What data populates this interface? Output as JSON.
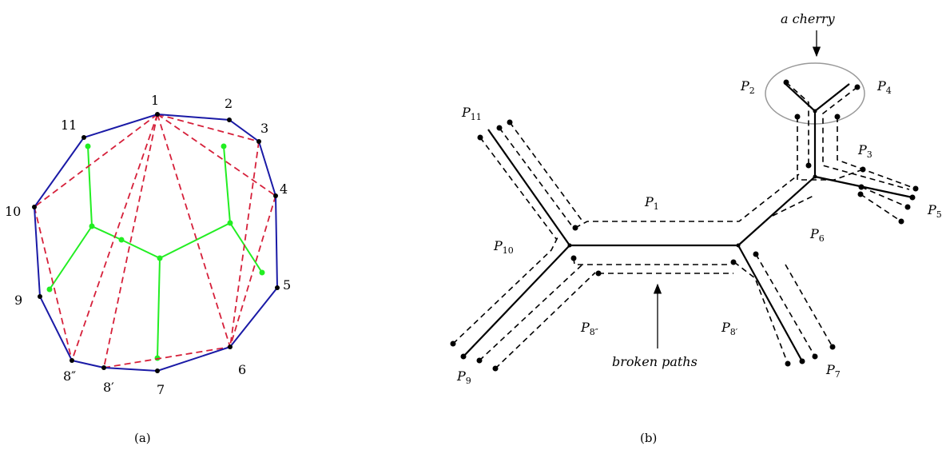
{
  "panel_a": {
    "caption": "(a)",
    "vertex_labels": [
      "1",
      "2",
      "3",
      "4",
      "5",
      "6",
      "7",
      "8′",
      "8″",
      "9",
      "10",
      "11"
    ],
    "colors": {
      "polygon": "#1a1aa6",
      "diagonals": "#d6203a",
      "tree": "#22ee22"
    }
  },
  "panel_b": {
    "caption": "(b)",
    "path_labels": [
      {
        "main": "P",
        "sub": "1"
      },
      {
        "main": "P",
        "sub": "2"
      },
      {
        "main": "P",
        "sub": "3"
      },
      {
        "main": "P",
        "sub": "4"
      },
      {
        "main": "P",
        "sub": "5"
      },
      {
        "main": "P",
        "sub": "6"
      },
      {
        "main": "P",
        "sub": "7"
      },
      {
        "main": "P",
        "sub": "8′"
      },
      {
        "main": "P",
        "sub": "8″"
      },
      {
        "main": "P",
        "sub": "9"
      },
      {
        "main": "P",
        "sub": "10"
      },
      {
        "main": "P",
        "sub": "11"
      }
    ],
    "annotations": {
      "cherry": "a cherry",
      "broken": "broken paths"
    },
    "colors": {
      "ellipse": "#999999"
    }
  }
}
